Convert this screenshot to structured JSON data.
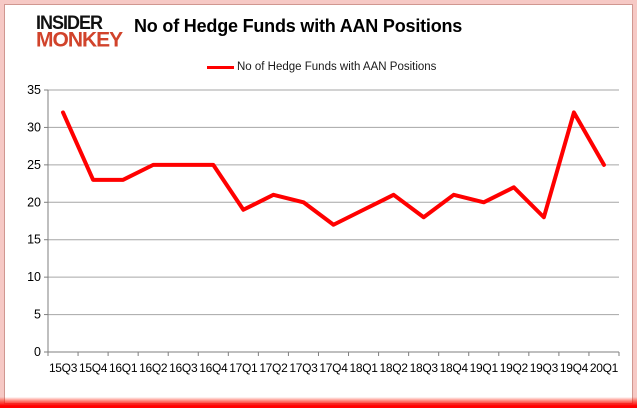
{
  "logo": {
    "line1": "INSIDER",
    "line2": "MONKEY"
  },
  "header": {
    "title": "No of Hedge Funds with AAN Positions"
  },
  "legend": {
    "label": "No of Hedge Funds with AAN Positions"
  },
  "colors": {
    "series_red": "#ff0000",
    "logo_red": "#d1432b",
    "gridline": "#a6a6a6",
    "axis": "#7f7f7f",
    "label_text": "#000000",
    "frame_pink": "#f6c9c5",
    "frame_bottom_red": "#ff0000"
  },
  "chart_data": {
    "type": "line",
    "title": "No of Hedge Funds with AAN Positions",
    "categories": [
      "15Q3",
      "15Q4",
      "16Q1",
      "16Q2",
      "16Q3",
      "16Q4",
      "17Q1",
      "17Q2",
      "17Q3",
      "17Q4",
      "18Q1",
      "18Q2",
      "18Q3",
      "18Q4",
      "19Q1",
      "19Q2",
      "19Q3",
      "19Q4",
      "20Q1"
    ],
    "series": [
      {
        "name": "No of Hedge Funds with AAN Positions",
        "color": "#ff0000",
        "values": [
          32,
          23,
          23,
          25,
          25,
          25,
          19,
          21,
          20,
          17,
          19,
          21,
          18,
          21,
          20,
          22,
          18,
          32,
          25
        ]
      }
    ],
    "xlabel": "",
    "ylabel": "",
    "ylim": [
      0,
      35
    ],
    "yticks": [
      0,
      5,
      10,
      15,
      20,
      25,
      30,
      35
    ],
    "grid": true,
    "legend_position": "top-center"
  }
}
